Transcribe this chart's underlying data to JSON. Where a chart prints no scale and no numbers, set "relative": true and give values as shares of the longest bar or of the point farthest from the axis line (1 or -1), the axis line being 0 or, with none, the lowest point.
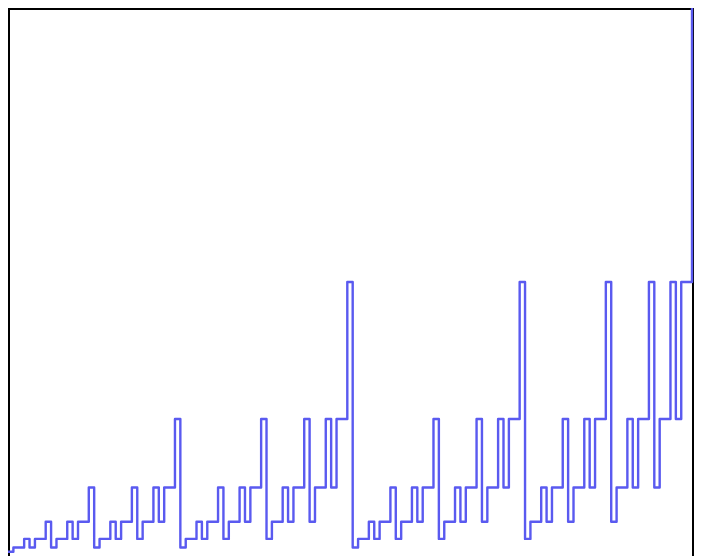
{
  "chart_data": {
    "type": "step",
    "relative": true,
    "tick_labels": false,
    "grid": false,
    "categories": [
      null,
      null,
      null,
      null,
      null,
      null,
      null,
      null,
      null,
      null,
      null,
      null,
      null,
      null,
      null,
      null,
      null,
      null,
      null,
      null,
      null,
      null,
      null,
      null,
      null,
      null,
      null,
      null,
      null,
      null,
      null,
      null,
      null,
      null,
      null,
      null,
      null,
      null,
      null,
      null,
      null,
      null,
      null,
      null,
      null,
      null,
      null,
      null,
      null,
      null,
      null,
      null,
      null,
      null,
      null,
      null,
      null,
      null,
      null,
      null,
      null,
      null,
      null,
      null,
      null,
      null,
      null,
      null,
      null,
      null,
      null,
      null,
      null,
      null,
      null,
      null,
      null,
      null,
      null,
      null,
      null,
      null,
      null,
      null,
      null,
      null,
      null,
      null,
      null,
      null,
      null,
      null,
      null,
      null,
      null,
      null,
      null,
      null,
      null,
      null,
      null,
      null,
      null,
      null,
      null,
      null,
      null,
      null,
      null,
      null,
      null,
      null,
      null,
      null,
      null,
      null,
      null,
      null,
      null,
      null,
      null,
      null,
      null,
      null,
      null,
      null,
      null,
      null
    ],
    "series": [
      {
        "color": "#5a5af0",
        "values": [
          0.0078125,
          0.015625,
          0.015625,
          0.03125,
          0.015625,
          0.03125,
          0.03125,
          0.0625,
          0.015625,
          0.03125,
          0.03125,
          0.0625,
          0.03125,
          0.0625,
          0.0625,
          0.125,
          0.015625,
          0.03125,
          0.03125,
          0.0625,
          0.03125,
          0.0625,
          0.0625,
          0.125,
          0.03125,
          0.0625,
          0.0625,
          0.125,
          0.0625,
          0.125,
          0.125,
          0.25,
          0.015625,
          0.03125,
          0.03125,
          0.0625,
          0.03125,
          0.0625,
          0.0625,
          0.125,
          0.03125,
          0.0625,
          0.0625,
          0.125,
          0.0625,
          0.125,
          0.125,
          0.25,
          0.03125,
          0.0625,
          0.0625,
          0.125,
          0.0625,
          0.125,
          0.125,
          0.25,
          0.0625,
          0.125,
          0.125,
          0.25,
          0.125,
          0.25,
          0.25,
          0.5,
          0.015625,
          0.03125,
          0.03125,
          0.0625,
          0.03125,
          0.0625,
          0.0625,
          0.125,
          0.03125,
          0.0625,
          0.0625,
          0.125,
          0.0625,
          0.125,
          0.125,
          0.25,
          0.03125,
          0.0625,
          0.0625,
          0.125,
          0.0625,
          0.125,
          0.125,
          0.25,
          0.0625,
          0.125,
          0.125,
          0.25,
          0.125,
          0.25,
          0.25,
          0.5,
          0.03125,
          0.0625,
          0.0625,
          0.125,
          0.0625,
          0.125,
          0.125,
          0.25,
          0.0625,
          0.125,
          0.125,
          0.25,
          0.125,
          0.25,
          0.25,
          0.5,
          0.0625,
          0.125,
          0.125,
          0.25,
          0.125,
          0.25,
          0.25,
          0.5,
          0.125,
          0.25,
          0.25,
          0.5,
          0.25,
          0.5,
          0.5,
          1
        ]
      }
    ]
  }
}
